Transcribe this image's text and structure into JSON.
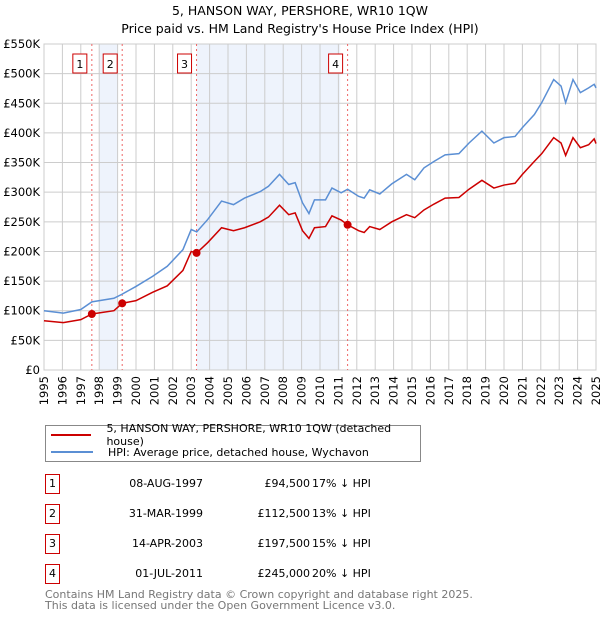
{
  "chart_data": {
    "type": "line",
    "title": "5, HANSON WAY, PERSHORE, WR10 1QW",
    "subtitle": "Price paid vs. HM Land Registry's House Price Index (HPI)",
    "xlim": [
      1995,
      2025
    ],
    "ylim": [
      0,
      550000
    ],
    "y_ticks": [
      "£0",
      "£50K",
      "£100K",
      "£150K",
      "£200K",
      "£250K",
      "£300K",
      "£350K",
      "£400K",
      "£450K",
      "£500K",
      "£550K"
    ],
    "x_ticks": [
      "1995",
      "1996",
      "1997",
      "1998",
      "1999",
      "2000",
      "2001",
      "2002",
      "2003",
      "2004",
      "2005",
      "2006",
      "2007",
      "2008",
      "2009",
      "2010",
      "2011",
      "2012",
      "2013",
      "2014",
      "2015",
      "2016",
      "2017",
      "2018",
      "2019",
      "2020",
      "2021",
      "2022",
      "2023",
      "2024",
      "2025"
    ],
    "grid": true,
    "legend_placement": "below",
    "shaded_periods": [
      [
        1998.0,
        1999.0
      ],
      [
        2003.3,
        2011.1
      ]
    ],
    "x": [
      1995.0,
      1996.05,
      1997.0,
      1997.6,
      1998.8,
      1999.25,
      2000.0,
      2000.9,
      2001.7,
      2002.55,
      2003.0,
      2003.3,
      2003.9,
      2004.65,
      2005.3,
      2005.9,
      2006.75,
      2007.2,
      2007.8,
      2008.3,
      2008.65,
      2009.05,
      2009.4,
      2009.7,
      2010.3,
      2010.65,
      2011.15,
      2011.5,
      2012.1,
      2012.4,
      2012.7,
      2013.25,
      2013.9,
      2014.7,
      2015.15,
      2015.65,
      2016.2,
      2016.8,
      2017.55,
      2018.1,
      2018.8,
      2019.45,
      2020.0,
      2020.6,
      2021.0,
      2021.65,
      2022.05,
      2022.7,
      2023.1,
      2023.35,
      2023.75,
      2024.15,
      2024.6,
      2024.9,
      2025.0
    ],
    "series": [
      {
        "name": "5, HANSON WAY, PERSHORE, WR10 1QW (detached house)",
        "color": "#cc0000",
        "values": [
          83000,
          80000,
          85000,
          94500,
          100000,
          112500,
          117000,
          131000,
          142000,
          168000,
          200000,
          197500,
          215000,
          240000,
          235000,
          240000,
          250000,
          258000,
          278000,
          262000,
          265000,
          235000,
          222000,
          240000,
          242000,
          260000,
          253000,
          245000,
          235000,
          232000,
          242000,
          237000,
          250000,
          262000,
          257000,
          270000,
          280000,
          290000,
          291000,
          305000,
          320000,
          307000,
          312000,
          315000,
          330000,
          352000,
          365000,
          392000,
          383000,
          362000,
          392000,
          375000,
          380000,
          390000,
          382000
        ]
      },
      {
        "name": "HPI: Average price, detached house, Wychavon",
        "color": "#5b8fd4",
        "values": [
          100000,
          96000,
          102000,
          115000,
          121000,
          128000,
          141000,
          158000,
          175000,
          203000,
          237000,
          233000,
          254000,
          285000,
          279000,
          290000,
          301000,
          310000,
          330000,
          313000,
          316000,
          282000,
          264000,
          287000,
          287000,
          307000,
          299000,
          305000,
          293000,
          290000,
          304000,
          297000,
          314000,
          330000,
          321000,
          341000,
          352000,
          363000,
          365000,
          383000,
          403000,
          383000,
          392000,
          394000,
          409000,
          431000,
          451000,
          490000,
          479000,
          451000,
          490000,
          468000,
          476000,
          482000,
          476000
        ]
      }
    ],
    "sales": [
      {
        "label": "1",
        "year": 1997.6,
        "price": 94500
      },
      {
        "label": "2",
        "year": 1999.25,
        "price": 112500
      },
      {
        "label": "3",
        "year": 2003.29,
        "price": 197500
      },
      {
        "label": "4",
        "year": 2011.5,
        "price": 245000
      }
    ]
  },
  "table": [
    {
      "num": "1",
      "date": "08-AUG-1997",
      "price": "£94,500",
      "hpi": "17% ↓ HPI"
    },
    {
      "num": "2",
      "date": "31-MAR-1999",
      "price": "£112,500",
      "hpi": "13% ↓ HPI"
    },
    {
      "num": "3",
      "date": "14-APR-2003",
      "price": "£197,500",
      "hpi": "15% ↓ HPI"
    },
    {
      "num": "4",
      "date": "01-JUL-2011",
      "price": "£245,000",
      "hpi": "20% ↓ HPI"
    }
  ],
  "footer": {
    "line1": "Contains HM Land Registry data © Crown copyright and database right 2025.",
    "line2": "This data is licensed under the Open Government Licence v3.0."
  }
}
